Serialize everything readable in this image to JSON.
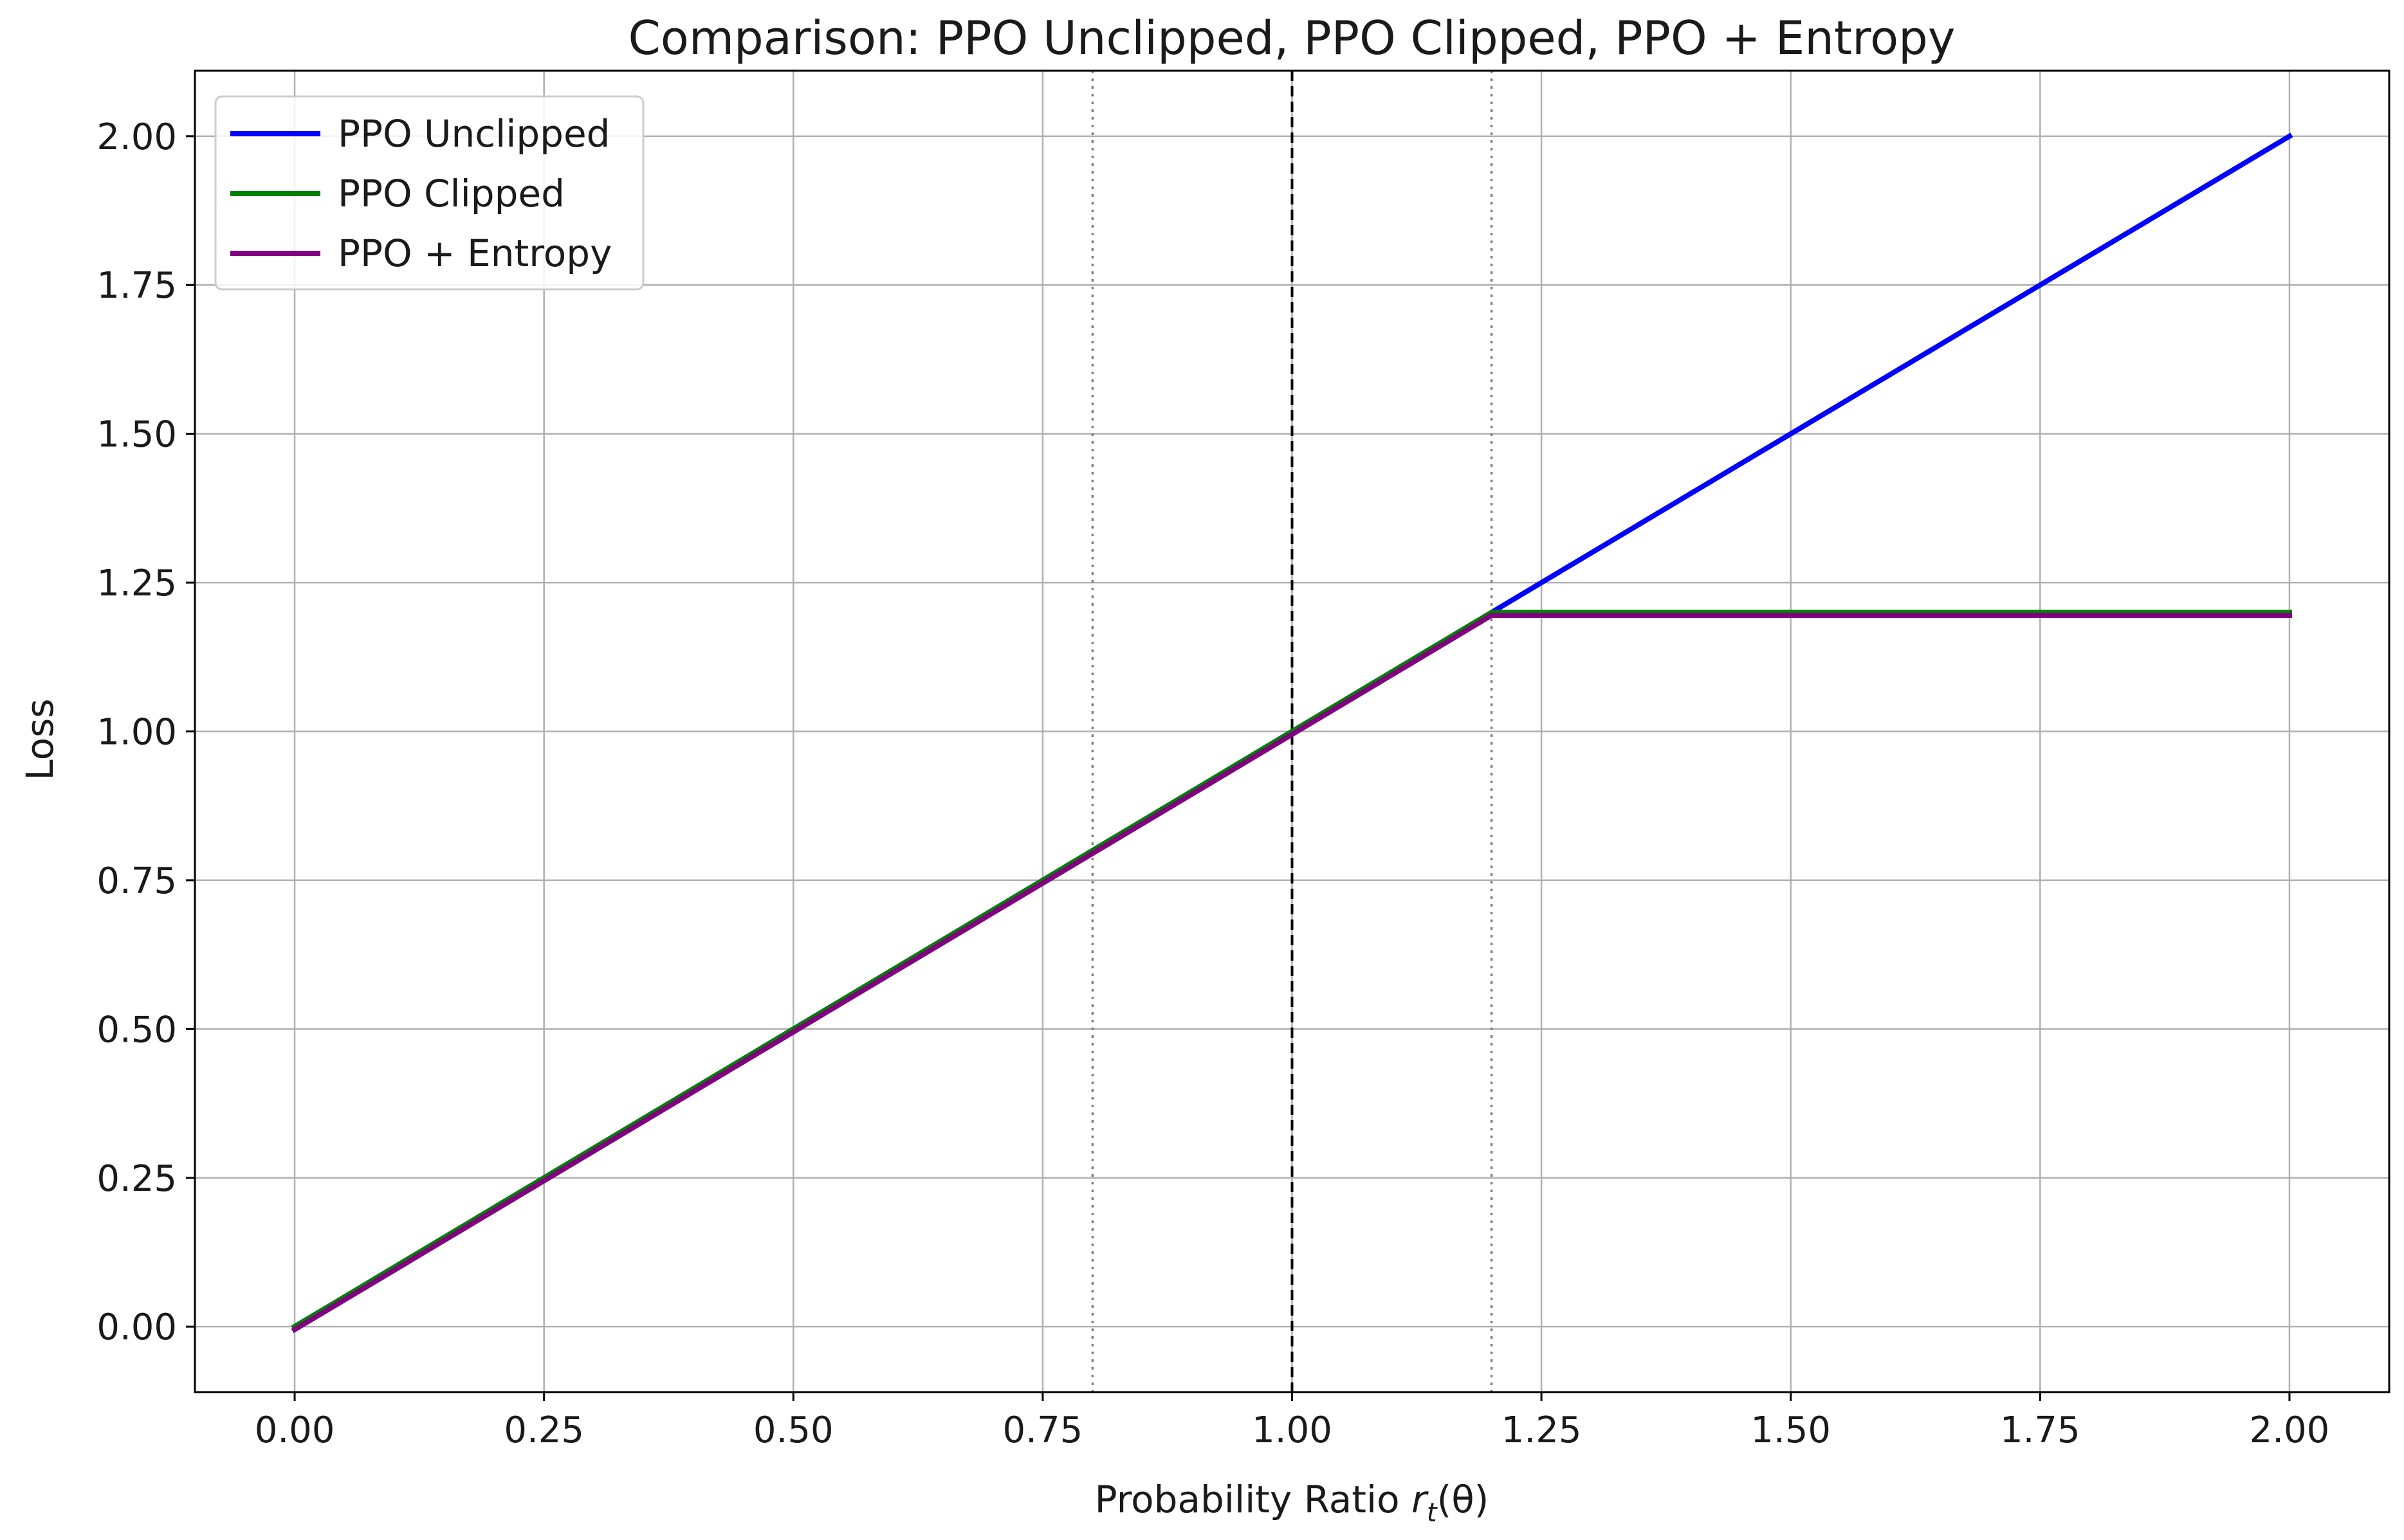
{
  "chart_data": {
    "type": "line",
    "title": "Comparison: PPO Unclipped, PPO Clipped, PPO + Entropy",
    "xlabel_prefix": "Probability Ratio ",
    "xlabel_symbol": "r",
    "xlabel_subscript": "t",
    "xlabel_suffix": "(θ)",
    "ylabel": "Loss",
    "xlim": [
      -0.1,
      2.1
    ],
    "ylim": [
      -0.11,
      2.11
    ],
    "x_ticks": [
      "0.00",
      "0.25",
      "0.50",
      "0.75",
      "1.00",
      "1.25",
      "1.50",
      "1.75",
      "2.00"
    ],
    "y_ticks": [
      "0.00",
      "0.25",
      "0.50",
      "0.75",
      "1.00",
      "1.25",
      "1.50",
      "1.75",
      "2.00"
    ],
    "grid": true,
    "legend_position": "top-left",
    "series": [
      {
        "name": "PPO Unclipped",
        "color": "#0000ff",
        "x": [
          0,
          1.2,
          2.0
        ],
        "y": [
          0,
          1.2,
          2.0
        ]
      },
      {
        "name": "PPO Clipped",
        "color": "#008000",
        "x": [
          0,
          1.2,
          2.0
        ],
        "y": [
          0,
          1.2,
          1.2
        ]
      },
      {
        "name": "PPO + Entropy",
        "color": "#800080",
        "x": [
          0,
          1.2,
          2.0
        ],
        "y": [
          -0.005,
          1.195,
          1.195
        ]
      }
    ],
    "reference_lines": [
      {
        "x": 0.8,
        "style": "dotted",
        "color": "#808080"
      },
      {
        "x": 1.0,
        "style": "dashed",
        "color": "#000000"
      },
      {
        "x": 1.2,
        "style": "dotted",
        "color": "#808080"
      }
    ]
  }
}
